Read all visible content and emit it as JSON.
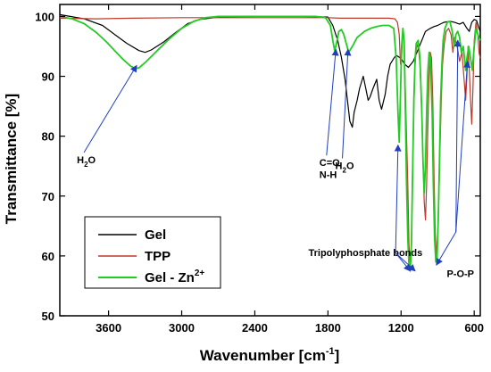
{
  "chart_data": {
    "type": "line",
    "xlabel": "Wavenumber [cm",
    "xlabel_sup": "-1",
    "xlabel_end": "]",
    "ylabel": "Transmittance [%]",
    "xlim": [
      4000,
      550
    ],
    "ylim": [
      50,
      102
    ],
    "xticks": [
      3600,
      3000,
      2400,
      1800,
      1200,
      600
    ],
    "yticks": [
      50,
      60,
      70,
      80,
      90,
      100
    ],
    "grid": false,
    "legend_position": "bottom-left",
    "series": [
      {
        "name": "Gel",
        "color": "#000000",
        "points": [
          [
            4000,
            100.3
          ],
          [
            3800,
            99.6
          ],
          [
            3650,
            98.5
          ],
          [
            3550,
            97.0
          ],
          [
            3450,
            95.5
          ],
          [
            3350,
            94.3
          ],
          [
            3300,
            94.0
          ],
          [
            3250,
            94.4
          ],
          [
            3150,
            95.7
          ],
          [
            3050,
            97.3
          ],
          [
            2950,
            98.8
          ],
          [
            2850,
            99.5
          ],
          [
            2700,
            99.9
          ],
          [
            2400,
            100.0
          ],
          [
            2000,
            100.0
          ],
          [
            1800,
            99.9
          ],
          [
            1760,
            98.5
          ],
          [
            1720,
            96.0
          ],
          [
            1690,
            93.2
          ],
          [
            1660,
            89.5
          ],
          [
            1640,
            86.0
          ],
          [
            1620,
            82.5
          ],
          [
            1600,
            81.5
          ],
          [
            1585,
            84.0
          ],
          [
            1560,
            86.0
          ],
          [
            1540,
            88.0
          ],
          [
            1510,
            90.0
          ],
          [
            1490,
            88.0
          ],
          [
            1470,
            86.0
          ],
          [
            1455,
            86.5
          ],
          [
            1430,
            88.0
          ],
          [
            1400,
            89.5
          ],
          [
            1380,
            86.0
          ],
          [
            1360,
            84.5
          ],
          [
            1330,
            87.0
          ],
          [
            1310,
            90.0
          ],
          [
            1290,
            92.0
          ],
          [
            1260,
            93.0
          ],
          [
            1240,
            93.5
          ],
          [
            1200,
            93.0
          ],
          [
            1170,
            92.0
          ],
          [
            1140,
            91.5
          ],
          [
            1100,
            92.5
          ],
          [
            1060,
            94.5
          ],
          [
            1030,
            96.0
          ],
          [
            1000,
            97.5
          ],
          [
            960,
            98.0
          ],
          [
            930,
            98.3
          ],
          [
            900,
            98.5
          ],
          [
            850,
            99.0
          ],
          [
            800,
            99.2
          ],
          [
            760,
            99.0
          ],
          [
            720,
            98.7
          ],
          [
            690,
            99.0
          ],
          [
            660,
            98.0
          ],
          [
            640,
            97.5
          ],
          [
            620,
            99.0
          ],
          [
            600,
            99.5
          ],
          [
            580,
            99.3
          ],
          [
            560,
            98.0
          ],
          [
            550,
            97.5
          ]
        ]
      },
      {
        "name": "TPP",
        "color": "#c0392b",
        "points": [
          [
            4000,
            99.7
          ],
          [
            3700,
            99.6
          ],
          [
            3400,
            99.7
          ],
          [
            3000,
            99.8
          ],
          [
            2500,
            99.8
          ],
          [
            2000,
            99.8
          ],
          [
            1800,
            99.8
          ],
          [
            1700,
            99.7
          ],
          [
            1300,
            99.7
          ],
          [
            1250,
            99.6
          ],
          [
            1230,
            99.0
          ],
          [
            1215,
            97.0
          ],
          [
            1205,
            92.0
          ],
          [
            1195,
            93.5
          ],
          [
            1185,
            97.5
          ],
          [
            1175,
            96.0
          ],
          [
            1165,
            88.0
          ],
          [
            1155,
            80.0
          ],
          [
            1145,
            72.0
          ],
          [
            1135,
            62.0
          ],
          [
            1125,
            58.5
          ],
          [
            1115,
            62.0
          ],
          [
            1105,
            75.0
          ],
          [
            1095,
            85.0
          ],
          [
            1085,
            92.0
          ],
          [
            1075,
            94.5
          ],
          [
            1060,
            95.5
          ],
          [
            1045,
            92.0
          ],
          [
            1030,
            84.0
          ],
          [
            1020,
            76.0
          ],
          [
            1010,
            69.0
          ],
          [
            1000,
            66.0
          ],
          [
            990,
            72.0
          ],
          [
            980,
            82.0
          ],
          [
            970,
            90.0
          ],
          [
            960,
            94.0
          ],
          [
            950,
            93.0
          ],
          [
            940,
            86.0
          ],
          [
            930,
            74.0
          ],
          [
            920,
            64.0
          ],
          [
            910,
            60.0
          ],
          [
            900,
            63.0
          ],
          [
            890,
            70.0
          ],
          [
            880,
            78.0
          ],
          [
            870,
            86.0
          ],
          [
            860,
            92.0
          ],
          [
            845,
            95.5
          ],
          [
            830,
            97.5
          ],
          [
            810,
            98.0
          ],
          [
            790,
            97.0
          ],
          [
            775,
            94.0
          ],
          [
            760,
            96.5
          ],
          [
            740,
            95.0
          ],
          [
            720,
            92.5
          ],
          [
            700,
            94.0
          ],
          [
            685,
            90.0
          ],
          [
            670,
            86.0
          ],
          [
            660,
            90.0
          ],
          [
            650,
            95.0
          ],
          [
            640,
            91.0
          ],
          [
            630,
            86.0
          ],
          [
            620,
            82.0
          ],
          [
            610,
            88.0
          ],
          [
            600,
            96.0
          ],
          [
            585,
            99.0
          ],
          [
            570,
            97.0
          ],
          [
            560,
            94.0
          ],
          [
            550,
            93.0
          ]
        ]
      },
      {
        "name": "Gel - Zn",
        "name_sup": "2+",
        "color": "#22cc22",
        "points": [
          [
            4000,
            100.0
          ],
          [
            3900,
            99.6
          ],
          [
            3800,
            98.8
          ],
          [
            3700,
            97.3
          ],
          [
            3620,
            95.8
          ],
          [
            3550,
            94.3
          ],
          [
            3480,
            92.8
          ],
          [
            3420,
            91.7
          ],
          [
            3380,
            91.3
          ],
          [
            3350,
            91.4
          ],
          [
            3300,
            92.3
          ],
          [
            3200,
            94.3
          ],
          [
            3100,
            96.3
          ],
          [
            3000,
            98.0
          ],
          [
            2900,
            99.2
          ],
          [
            2800,
            99.8
          ],
          [
            2700,
            100.0
          ],
          [
            2400,
            100.0
          ],
          [
            2000,
            100.0
          ],
          [
            1900,
            100.0
          ],
          [
            1820,
            99.8
          ],
          [
            1780,
            98.5
          ],
          [
            1760,
            96.0
          ],
          [
            1745,
            94.3
          ],
          [
            1730,
            95.5
          ],
          [
            1710,
            97.5
          ],
          [
            1690,
            97.8
          ],
          [
            1670,
            97.0
          ],
          [
            1650,
            95.5
          ],
          [
            1630,
            94.0
          ],
          [
            1600,
            95.0
          ],
          [
            1560,
            96.5
          ],
          [
            1500,
            97.5
          ],
          [
            1450,
            98.0
          ],
          [
            1400,
            98.3
          ],
          [
            1350,
            98.5
          ],
          [
            1300,
            98.5
          ],
          [
            1260,
            98.0
          ],
          [
            1240,
            93.0
          ],
          [
            1225,
            84.0
          ],
          [
            1215,
            79.0
          ],
          [
            1205,
            87.0
          ],
          [
            1195,
            95.0
          ],
          [
            1185,
            98.0
          ],
          [
            1175,
            96.0
          ],
          [
            1165,
            85.0
          ],
          [
            1155,
            72.0
          ],
          [
            1145,
            63.0
          ],
          [
            1135,
            58.5
          ],
          [
            1125,
            57.5
          ],
          [
            1115,
            62.0
          ],
          [
            1105,
            74.0
          ],
          [
            1095,
            86.0
          ],
          [
            1085,
            93.0
          ],
          [
            1075,
            95.5
          ],
          [
            1060,
            96.0
          ],
          [
            1045,
            93.0
          ],
          [
            1030,
            84.0
          ],
          [
            1020,
            76.0
          ],
          [
            1010,
            70.5
          ],
          [
            1000,
            75.0
          ],
          [
            990,
            84.0
          ],
          [
            980,
            91.0
          ],
          [
            970,
            94.0
          ],
          [
            960,
            93.0
          ],
          [
            945,
            84.0
          ],
          [
            935,
            72.0
          ],
          [
            925,
            63.0
          ],
          [
            915,
            59.0
          ],
          [
            905,
            59.5
          ],
          [
            895,
            66.0
          ],
          [
            885,
            76.0
          ],
          [
            875,
            86.0
          ],
          [
            865,
            92.0
          ],
          [
            855,
            96.0
          ],
          [
            840,
            98.0
          ],
          [
            820,
            99.0
          ],
          [
            800,
            99.2
          ],
          [
            780,
            97.5
          ],
          [
            765,
            95.0
          ],
          [
            750,
            97.0
          ],
          [
            735,
            97.5
          ],
          [
            720,
            96.5
          ],
          [
            705,
            94.0
          ],
          [
            690,
            95.0
          ],
          [
            680,
            93.0
          ],
          [
            670,
            91.0
          ],
          [
            660,
            93.0
          ],
          [
            645,
            95.0
          ],
          [
            630,
            93.0
          ],
          [
            615,
            91.0
          ],
          [
            600,
            95.0
          ],
          [
            585,
            98.0
          ],
          [
            570,
            97.0
          ],
          [
            550,
            96.0
          ]
        ]
      }
    ],
    "annotations": [
      {
        "text": "H",
        "sub": "2",
        "text2": "O",
        "x": 3860,
        "y": 75.5,
        "arrow_to": [
          3370,
          91.8
        ],
        "color": "#1f3fbf"
      },
      {
        "text": "C=O",
        "x": 1870,
        "y": 75.0,
        "arrow_to": [
          1735,
          94.5
        ],
        "color": "#1f3fbf"
      },
      {
        "text": "N-H",
        "x": 1870,
        "y": 73.0
      },
      {
        "text": "H",
        "sub": "2",
        "text2": "O",
        "x": 1740,
        "y": 74.5,
        "arrow_to": [
          1635,
          94.5
        ],
        "color": "#1f3fbf"
      },
      {
        "text": "Tripolyphosphate bonds",
        "x": 1960,
        "y": 60.0,
        "arrows_to": [
          [
            1225,
            78.5
          ],
          [
            1125,
            57.5
          ],
          [
            1085,
            57.5
          ]
        ],
        "arrow_from": [
          1245,
          60.5
        ],
        "color": "#1f3fbf"
      },
      {
        "text": "P-O-P",
        "x": 825,
        "y": 56.5,
        "arrows_to": [
          [
            910,
            58.5
          ],
          [
            735,
            96.0
          ],
          [
            655,
            92.5
          ]
        ],
        "arrow_from": [
          750,
          64.0
        ],
        "color": "#1f3fbf"
      }
    ]
  }
}
